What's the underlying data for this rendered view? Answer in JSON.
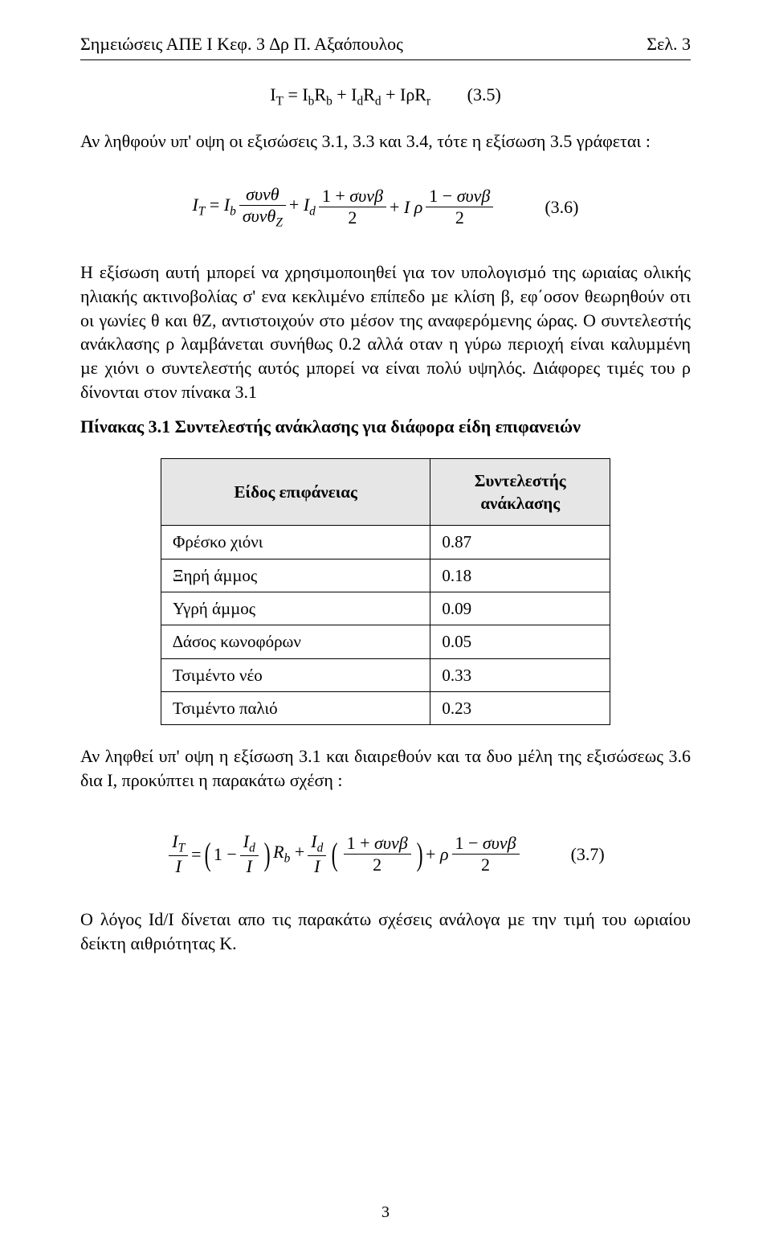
{
  "header": {
    "left": "Σηµειώσεις  ΑΠΕ  Ι  Κεφ. 3     ∆ρ  Π.  Αξαόπουλος",
    "right": "Σελ.  3"
  },
  "eq35": {
    "formula_html": "I<sub>T</sub> = I<sub>b</sub>R<sub>b</sub> + I<sub>d</sub>R<sub>d</sub> + IρR<sub>r</sub>",
    "num": "(3.5)"
  },
  "para1": "Αν ληθφούν υπ' οψη οι εξισώσεις 3.1, 3.3 και 3.4, τότε η εξίσωση 3.5 γράφεται :",
  "eq36": {
    "lhs_html": "<span class=\"ital\">I<sub>T</sub></span> = <span class=\"ital\">I<sub>b</sub></span>",
    "frac1_num": "<span class=\"ital\">συνθ</span>",
    "frac1_den": "<span class=\"ital\">συνθ<sub>Z</sub></span>",
    "plus1": " + <span class=\"ital\">I<sub>d</sub></span>",
    "frac2_num": "1 + <span class=\"ital\">συνβ</span>",
    "frac2_den": "2",
    "plus2": " + <span class=\"ital\">I ρ</span>",
    "frac3_num": "1 − <span class=\"ital\">συνβ</span>",
    "frac3_den": "2",
    "num": "(3.6)"
  },
  "para2": "Η εξίσωση αυτή µπορεί να χρησιµοποιηθεί για τον υπολογισµό της ωριαίας ολικής ηλιακής ακτινοβολίας σ' ενα κεκλιµένο επίπεδο µε κλίση β, εφ΄οσον θεωρηθούν οτι οι γωνίες θ και θZ, αντιστοιχούν στο µέσον της αναφερόµενης ώρας. Ο συντελεστής ανάκλασης ρ λαµβάνεται συνήθως 0.2 αλλά οταν η γύρω περιοχή είναι καλυµµένη µε χιόνι ο συντελεστής αυτός µπορεί να είναι  πολύ υψηλός. ∆ιάφορες τιµές του ρ δίνονται στον πίνακα 3.1",
  "table_caption": "Πίνακας 3.1 Συντελεστής ανάκλασης για διάφορα είδη επιφανειών",
  "table": {
    "col1": "Είδος επιφάνειας",
    "col2": "Συντελεστής ανάκλασης",
    "rows": [
      {
        "surface": "Φρέσκο  χιόνι",
        "value": "0.87"
      },
      {
        "surface": "Ξηρή άµµος",
        "value": "0.18"
      },
      {
        "surface": "Υγρή άµµος",
        "value": "0.09"
      },
      {
        "surface": "∆άσος κωνοφόρων",
        "value": "0.05"
      },
      {
        "surface": "Τσιµέντο νέο",
        "value": "0.33"
      },
      {
        "surface": "Τσιµέντο παλιό",
        "value": "0.23"
      }
    ]
  },
  "para3": "Αν ληφθεί υπ' οψη η εξίσωση 3.1 και διαιρεθούν και τα δυο µέλη της εξισώσεως  3.6 δια Ι, προκύπτει η παρακάτω σχέση :",
  "eq37": {
    "lhs_num": "<span class=\"ital\">I<sub>T</sub></span>",
    "lhs_den": "<span class=\"ital\">I</span>",
    "eq": " = ",
    "p1_num": "<span class=\"ital\">I<sub>d</sub></span>",
    "p1_den": "<span class=\"ital\">I</span>",
    "one_minus": "1 − ",
    "Rb": "<span class=\"ital\">R<sub>b</sub></span> + ",
    "p2_num": "<span class=\"ital\">I<sub>d</sub></span>",
    "p2_den": "<span class=\"ital\">I</span>",
    "p3_num": "1 + <span class=\"ital\">συνβ</span>",
    "p3_den": "2",
    "plus_rho": " + <span class=\"ital\">ρ</span>",
    "p4_num": "1 − <span class=\"ital\">συνβ</span>",
    "p4_den": "2",
    "num": "(3.7)"
  },
  "para4": "Ο λόγος Id/I δίνεται απο τις παρακάτω σχέσεις ανάλογα µε την τιµή του ωριαίου δείκτη αιθριότητας  Κ.",
  "footer_page": "3",
  "colors": {
    "text": "#000000",
    "background": "#ffffff",
    "table_header_bg": "#e6e6e6",
    "border": "#000000"
  },
  "fonts": {
    "family": "Times New Roman",
    "body_size_pt": 16
  }
}
